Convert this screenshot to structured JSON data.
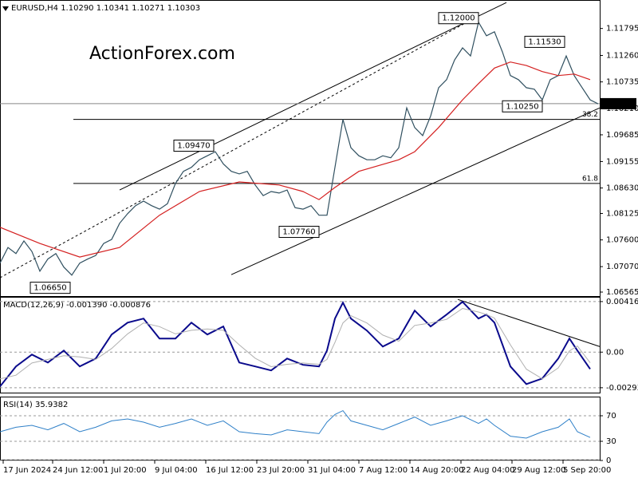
{
  "chart_data": [
    {
      "type": "line",
      "title": "EURUSD,H4  1.10290 1.10341 1.10271 1.10303",
      "watermark": "ActionForex.com",
      "xlim": [
        0,
        376
      ],
      "ylim": [
        1.0647,
        1.1236
      ],
      "yticks": [
        1.11795,
        {
          "value": 1.1126,
          "label": "1.11260"
        },
        1.10735,
        {
          "value": 1.1021,
          "label": "1.10210"
        },
        1.09685,
        1.09155,
        {
          "value": 1.0863,
          "label": "1.08630"
        },
        1.08125,
        {
          "value": 1.076,
          "label": "1.07600"
        },
        {
          "value": 1.0707,
          "label": "1.07070"
        },
        1.06565
      ],
      "series": [
        {
          "color": "#2f4f5f",
          "x": [
            0,
            5,
            10,
            15,
            20,
            25,
            30,
            35,
            40,
            45,
            50,
            55,
            60,
            65,
            70,
            75,
            80,
            85,
            90,
            95,
            100,
            105,
            110,
            115,
            120,
            125,
            130,
            135,
            140,
            145,
            150,
            155,
            160,
            165,
            170,
            175,
            180,
            185,
            190,
            195,
            200,
            205,
            210,
            215,
            220,
            225,
            230,
            235,
            240,
            245,
            250,
            255,
            260,
            265,
            270,
            275,
            280,
            285,
            290,
            295,
            300,
            305,
            310,
            315,
            320,
            325,
            330,
            335,
            340,
            345,
            350,
            355,
            360,
            365,
            370,
            375
          ],
          "values": [
            1.0714,
            1.0745,
            1.0733,
            1.0758,
            1.0737,
            1.0698,
            1.0722,
            1.0733,
            1.0706,
            1.069,
            1.0714,
            1.0722,
            1.0729,
            1.0753,
            1.0761,
            1.0793,
            1.0812,
            1.0828,
            1.0837,
            1.0828,
            1.0821,
            1.0832,
            1.0872,
            1.0896,
            1.0904,
            1.0919,
            1.0927,
            1.0935,
            1.0911,
            1.0896,
            1.0891,
            1.0896,
            1.0869,
            1.0848,
            1.0856,
            1.0853,
            1.0859,
            1.0824,
            1.0821,
            1.0828,
            1.0809,
            1.0809,
            1.0904,
            1.0999,
            1.0943,
            1.0927,
            1.0919,
            1.0919,
            1.0927,
            1.0923,
            1.0943,
            1.1022,
            1.0983,
            1.0967,
            1.1006,
            1.1062,
            1.1078,
            1.1117,
            1.1141,
            1.1125,
            1.1192,
            1.1165,
            1.1173,
            1.1133,
            1.1086,
            1.1078,
            1.1062,
            1.1059,
            1.1038,
            1.1078,
            1.1086,
            1.1125,
            1.1086,
            1.1062,
            1.1038,
            1.103
          ]
        },
        {
          "color": "#d42020",
          "x": [
            0,
            25,
            50,
            75,
            100,
            125,
            150,
            175,
            190,
            200,
            210,
            225,
            250,
            260,
            275,
            290,
            300,
            310,
            320,
            330,
            340,
            350,
            360,
            370
          ],
          "values": [
            1.0785,
            1.0753,
            1.0726,
            1.0745,
            1.0809,
            1.0856,
            1.0875,
            1.0869,
            1.0856,
            1.084,
            1.0864,
            1.0896,
            1.0919,
            1.0935,
            1.0983,
            1.1038,
            1.107,
            1.1101,
            1.1113,
            1.1106,
            1.1094,
            1.1086,
            1.1089,
            1.1078
          ]
        }
      ],
      "lines": [
        {
          "x": [
            75,
            317.5
          ],
          "y": [
            1.0859,
            1.1231
          ],
          "dashed": false
        },
        {
          "x": [
            145,
            376
          ],
          "y": [
            1.0691,
            1.1022
          ],
          "dashed": false
        },
        {
          "x": [
            0,
            295
          ],
          "y": [
            1.0685,
            1.1196
          ],
          "dashed": true
        }
      ],
      "hlines": [
        {
          "label": "38.2",
          "y": 1.0999,
          "x0": 46
        },
        {
          "label": "61.8",
          "y": 1.0872,
          "x0": 46
        }
      ],
      "annotations": [
        {
          "label": "1.12000",
          "x": 300,
          "y": 1.12
        },
        {
          "label": "1.11530",
          "x": 354,
          "y": 1.1153
        },
        {
          "label": "1.10250",
          "x": 340,
          "y": 1.1025
        },
        {
          "label": "1.09470",
          "x": 134,
          "y": 1.0947
        },
        {
          "label": "1.07760",
          "x": 200,
          "y": 1.0776
        },
        {
          "label": "1.06650",
          "x": 44,
          "y": 1.0665
        }
      ],
      "current": 1.10303
    },
    {
      "type": "line",
      "title": "MACD(12,26,9) -0.001390 -0.000876",
      "xlim": [
        0,
        376
      ],
      "ylim": [
        -0.0034,
        0.00455
      ],
      "yticks": [
        0.004161,
        {
          "value": 0,
          "label": "0.00"
        },
        -0.002932
      ],
      "grid": true,
      "series": [
        {
          "color": "#0a0a8c",
          "width": 2,
          "x": [
            0,
            10,
            20,
            30,
            40,
            50,
            60,
            70,
            80,
            90,
            100,
            110,
            120,
            130,
            140,
            150,
            160,
            170,
            180,
            190,
            200,
            205,
            210,
            215,
            220,
            230,
            240,
            250,
            260,
            270,
            280,
            290,
            300,
            305,
            310,
            320,
            330,
            340,
            350,
            357,
            362,
            370
          ],
          "values": [
            -0.00283,
            -0.00118,
            -0.0002,
            -0.00086,
            0.00013,
            -0.00118,
            -0.00053,
            0.00145,
            0.00243,
            0.00276,
            0.00112,
            0.00112,
            0.00243,
            0.00145,
            0.00211,
            -0.00086,
            -0.00118,
            -0.00151,
            -0.00053,
            -0.00105,
            -0.00118,
            0.00013,
            0.00276,
            0.00408,
            0.00276,
            0.00178,
            0.00046,
            0.00112,
            0.00342,
            0.00211,
            0.00309,
            0.00414,
            0.00276,
            0.00309,
            0.00243,
            -0.00118,
            -0.00263,
            -0.00217,
            -0.00053,
            0.00112,
            0.00013,
            -0.00139
          ]
        },
        {
          "color": "#b0b0b0",
          "width": 1,
          "x": [
            0,
            10,
            20,
            30,
            40,
            50,
            60,
            70,
            80,
            90,
            100,
            110,
            120,
            130,
            140,
            150,
            160,
            170,
            180,
            190,
            200,
            205,
            210,
            215,
            220,
            230,
            240,
            250,
            260,
            270,
            280,
            290,
            300,
            305,
            310,
            320,
            330,
            340,
            350,
            357,
            362,
            370
          ],
          "values": [
            -0.0022,
            -0.0019,
            -0.0009,
            -0.0006,
            -0.0003,
            -0.0004,
            -0.0006,
            0.0003,
            0.0015,
            0.0024,
            0.0021,
            0.0015,
            0.0018,
            0.0019,
            0.0018,
            0.0006,
            -0.0005,
            -0.0012,
            -0.001,
            -0.0009,
            -0.001,
            -0.0006,
            0.0008,
            0.0024,
            0.003,
            0.0024,
            0.0014,
            0.0009,
            0.0022,
            0.0024,
            0.0027,
            0.0036,
            0.0033,
            0.0031,
            0.0028,
            0.0006,
            -0.0014,
            -0.0022,
            -0.0013,
            0.0001,
            0.0005,
            -0.000876
          ]
        }
      ],
      "lines": [
        {
          "x": [
            287,
            376
          ],
          "y": [
            0.00434,
            0.00046
          ],
          "dashed": false
        }
      ]
    },
    {
      "type": "line",
      "title": "RSI(14) 35.9382",
      "xlim": [
        0,
        376
      ],
      "ylim": [
        0,
        100
      ],
      "yticks": [
        70,
        30,
        0
      ],
      "grid": true,
      "series": [
        {
          "color": "#2f80c8",
          "width": 1,
          "x": [
            0,
            10,
            20,
            30,
            40,
            50,
            60,
            70,
            80,
            90,
            100,
            110,
            120,
            130,
            140,
            150,
            160,
            170,
            180,
            190,
            200,
            205,
            210,
            215,
            220,
            230,
            240,
            250,
            260,
            270,
            280,
            290,
            300,
            305,
            310,
            320,
            330,
            340,
            350,
            357,
            362,
            370
          ],
          "values": [
            45,
            52,
            55,
            48,
            58,
            45,
            52,
            62,
            65,
            60,
            52,
            58,
            65,
            55,
            62,
            45,
            42,
            40,
            48,
            45,
            42,
            60,
            72,
            78,
            62,
            55,
            48,
            58,
            68,
            55,
            62,
            70,
            58,
            65,
            55,
            38,
            35,
            45,
            52,
            65,
            45,
            35.9382
          ]
        }
      ],
      "xticks": [
        {
          "value": 2,
          "label": "17 Jun 2024"
        },
        {
          "value": 33,
          "label": "24 Jun 12:00"
        },
        {
          "value": 65,
          "label": "1 Jul 20:00"
        },
        {
          "value": 97,
          "label": "9 Jul 04:00"
        },
        {
          "value": 129,
          "label": "16 Jul 12:00"
        },
        {
          "value": 161,
          "label": "23 Jul 20:00"
        },
        {
          "value": 193,
          "label": "31 Jul 04:00"
        },
        {
          "value": 225,
          "label": "7 Aug 12:00"
        },
        {
          "value": 257,
          "label": "14 Aug 20:00"
        },
        {
          "value": 289,
          "label": "22 Aug 04:00"
        },
        {
          "value": 321,
          "label": "29 Aug 12:00"
        },
        {
          "value": 353,
          "label": "5 Sep 20:00"
        }
      ]
    }
  ]
}
